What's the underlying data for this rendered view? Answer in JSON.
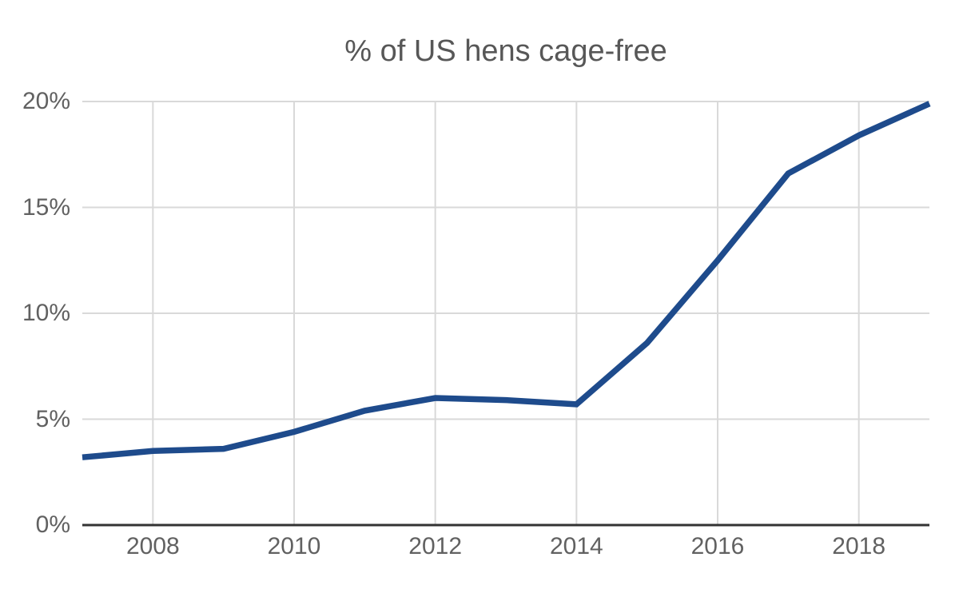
{
  "chart_data": {
    "type": "line",
    "title": "% of US hens cage-free",
    "xlabel": "",
    "ylabel": "",
    "x": [
      2007,
      2008,
      2009,
      2010,
      2011,
      2012,
      2013,
      2014,
      2015,
      2016,
      2017,
      2018,
      2019
    ],
    "values": [
      3.2,
      3.5,
      3.6,
      4.4,
      5.4,
      6.0,
      5.9,
      5.7,
      8.6,
      12.5,
      16.6,
      18.4,
      19.9
    ],
    "xlim": [
      2007,
      2019
    ],
    "ylim": [
      0,
      20
    ],
    "x_ticks": [
      {
        "v": 2008,
        "label": "2008"
      },
      {
        "v": 2010,
        "label": "2010"
      },
      {
        "v": 2012,
        "label": "2012"
      },
      {
        "v": 2014,
        "label": "2014"
      },
      {
        "v": 2016,
        "label": "2016"
      },
      {
        "v": 2018,
        "label": "2018"
      }
    ],
    "y_ticks": [
      {
        "v": 0,
        "label": "0%"
      },
      {
        "v": 5,
        "label": "5%"
      },
      {
        "v": 10,
        "label": "10%"
      },
      {
        "v": 15,
        "label": "15%"
      },
      {
        "v": 20,
        "label": "20%"
      }
    ],
    "grid": true,
    "legend_position": "none",
    "colors": {
      "line": "#1e4b8c",
      "grid": "#d9d9d9",
      "axis": "#333333",
      "title_text": "#575757",
      "tick_text": "#616161",
      "background": "#ffffff"
    }
  }
}
